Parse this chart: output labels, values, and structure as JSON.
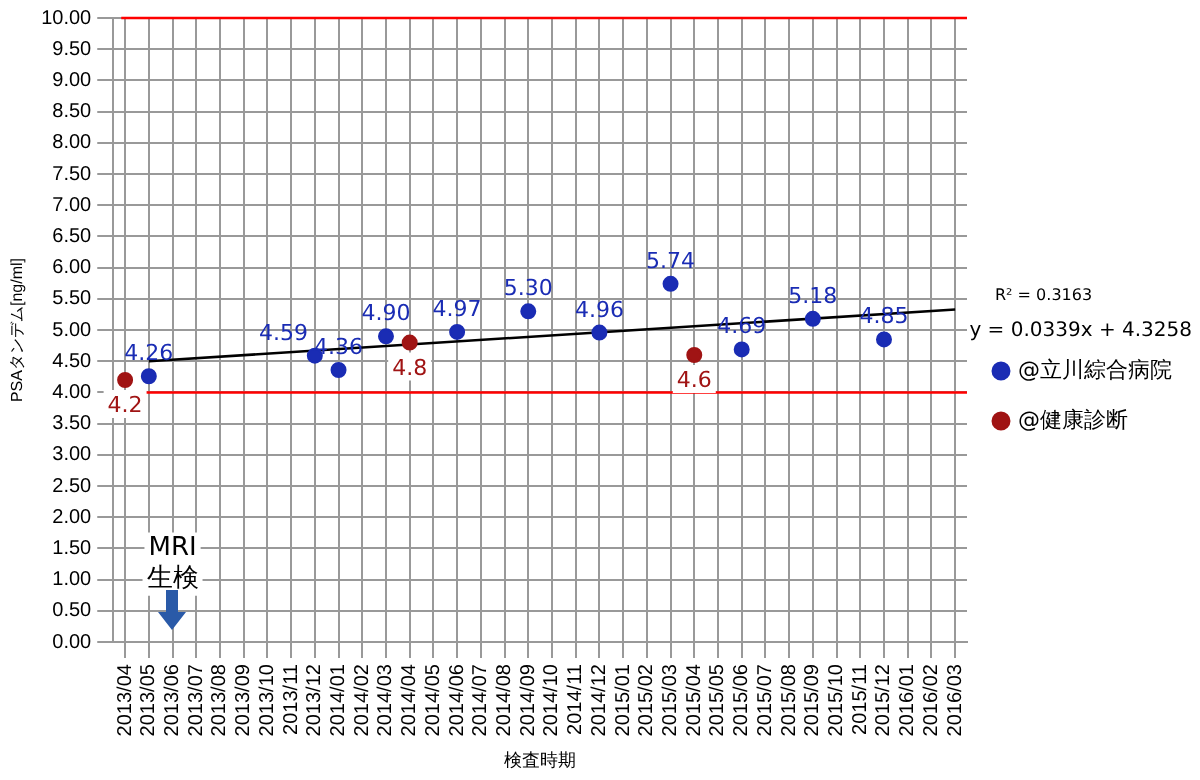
{
  "chart_data": {
    "type": "scatter",
    "xlabel": "検査時期",
    "ylabel": "PSAタンデム[ng/ml]",
    "categories": [
      "2013/04",
      "2013/05",
      "2013/06",
      "2013/07",
      "2013/08",
      "2013/09",
      "2013/10",
      "2013/11",
      "2013/12",
      "2014/01",
      "2014/02",
      "2014/03",
      "2014/04",
      "2014/05",
      "2014/06",
      "2014/07",
      "2014/08",
      "2014/09",
      "2014/10",
      "2014/11",
      "2014/12",
      "2015/01",
      "2015/02",
      "2015/03",
      "2015/04",
      "2015/05",
      "2015/06",
      "2015/07",
      "2015/08",
      "2015/09",
      "2015/10",
      "2015/11",
      "2015/12",
      "2016/01",
      "2016/02",
      "2016/03"
    ],
    "series": [
      {
        "name": "@立川綜合病院",
        "color": "#1a2cb4",
        "values": [
          null,
          4.26,
          null,
          null,
          null,
          null,
          null,
          null,
          4.59,
          4.36,
          null,
          4.9,
          null,
          null,
          4.97,
          null,
          null,
          5.3,
          null,
          null,
          4.96,
          null,
          null,
          5.74,
          null,
          null,
          4.69,
          null,
          null,
          5.18,
          null,
          null,
          4.85,
          null,
          null,
          null
        ],
        "value_labels": [
          null,
          "4.26",
          null,
          null,
          null,
          null,
          null,
          null,
          "4.59",
          "4.36",
          null,
          "4.90",
          null,
          null,
          "4.97",
          null,
          null,
          "5.30",
          null,
          null,
          "4.96",
          null,
          null,
          "5.74",
          null,
          null,
          "4.69",
          null,
          null,
          "5.18",
          null,
          null,
          "4.85",
          null,
          null,
          null
        ]
      },
      {
        "name": "@健康診断",
        "color": "#a01414",
        "values": [
          4.2,
          null,
          null,
          null,
          null,
          null,
          null,
          null,
          null,
          null,
          null,
          null,
          4.8,
          null,
          null,
          null,
          null,
          null,
          null,
          null,
          null,
          null,
          null,
          null,
          4.6,
          null,
          null,
          null,
          null,
          null,
          null,
          null,
          null,
          null,
          null,
          null
        ],
        "value_labels": [
          "4.2",
          null,
          null,
          null,
          null,
          null,
          null,
          null,
          null,
          null,
          null,
          null,
          "4.8",
          null,
          null,
          null,
          null,
          null,
          null,
          null,
          null,
          null,
          null,
          null,
          "4.6",
          null,
          null,
          null,
          null,
          null,
          null,
          null,
          null,
          null,
          null,
          null
        ]
      },
      {
        "type": "line",
        "color": "#000000",
        "marker": "none",
        "x": [
          "2013/05",
          "2016/03"
        ],
        "values": [
          4.5,
          5.33
        ]
      }
    ],
    "ylim": [
      0,
      10
    ],
    "yticks": [
      {
        "value": 0,
        "label": "0.00"
      },
      {
        "value": 0.5,
        "label": "0.50"
      },
      {
        "value": 1,
        "label": "1.00"
      },
      {
        "value": 1.5,
        "label": "1.50"
      },
      {
        "value": 2,
        "label": "2.00"
      },
      {
        "value": 2.5,
        "label": "2.50"
      },
      {
        "value": 3,
        "label": "3.00"
      },
      {
        "value": 3.5,
        "label": "3.50"
      },
      {
        "value": 4,
        "label": "4.00"
      },
      {
        "value": 4.5,
        "label": "4.50"
      },
      {
        "value": 5,
        "label": "5.00"
      },
      {
        "value": 5.5,
        "label": "5.50"
      },
      {
        "value": 6,
        "label": "6.00"
      },
      {
        "value": 6.5,
        "label": "6.50"
      },
      {
        "value": 7,
        "label": "7.00"
      },
      {
        "value": 7.5,
        "label": "7.50"
      },
      {
        "value": 8,
        "label": "8.00"
      },
      {
        "value": 8.5,
        "label": "8.50"
      },
      {
        "value": 9,
        "label": "9.00"
      },
      {
        "value": 9.5,
        "label": "9.50"
      },
      {
        "value": 10,
        "label": "10.00"
      }
    ],
    "ref_lines": [
      {
        "axis": "y",
        "value": 4,
        "color": "#ff0000"
      },
      {
        "axis": "y",
        "value": 10,
        "color": "#ff0000"
      }
    ],
    "annotations": [
      "R² = 0.3163",
      "y = 0.0339x + 4.3258",
      {
        "text": "MRI",
        "x": "2013/06",
        "y": 1.5
      },
      {
        "text": "生検",
        "x": "2013/06",
        "y": 1.0
      }
    ],
    "grid": true,
    "legend": "right",
    "marker": "circle"
  }
}
